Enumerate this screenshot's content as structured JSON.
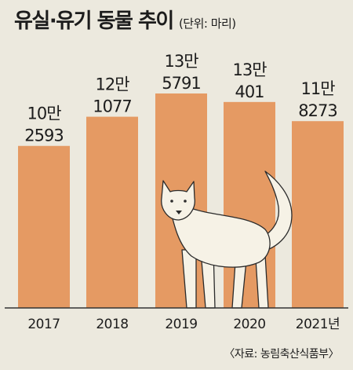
{
  "chart_data": {
    "type": "bar",
    "title": "유실·유기 동물 추이",
    "unit": "(단위: 마리)",
    "categories": [
      "2017",
      "2018",
      "2019",
      "2020",
      "2021년"
    ],
    "values": [
      102593,
      121077,
      135791,
      130401,
      118273
    ],
    "value_labels": [
      [
        "10만",
        "2593"
      ],
      [
        "12만",
        "1077"
      ],
      [
        "13만",
        "5791"
      ],
      [
        "13만",
        "401"
      ],
      [
        "11만",
        "8273"
      ]
    ],
    "source": "〈자료: 농림축산식품부〉",
    "ylim": [
      0,
      140000
    ],
    "grid": false,
    "legend": "none"
  },
  "colors": {
    "background": "#ece9de",
    "bar": "#e59a63",
    "dog": "#f6f2e6",
    "dog_outline": "#2b2b2b",
    "axis": "#333333"
  },
  "illustration": "dog-icon"
}
